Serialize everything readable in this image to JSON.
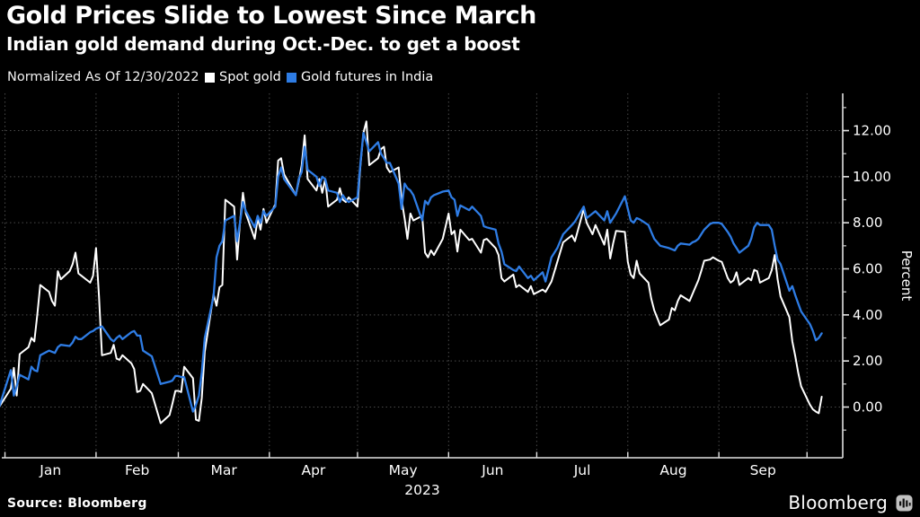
{
  "header": {
    "title": "Gold Prices Slide to Lowest Since March",
    "subtitle": "Indian gold demand during Oct.-Dec. to get a boost"
  },
  "legend": {
    "note": "Normalized As Of 12/30/2022",
    "spot_label": "Spot gold",
    "futures_label": "Gold futures in India",
    "spot_color": "#ffffff",
    "futures_color": "#2e7ce4"
  },
  "footer": {
    "source": "Source: Bloomberg",
    "brand": "Bloomberg",
    "brand_icon": "bar-chart-icon"
  },
  "x_axis": {
    "year": "2023",
    "months": [
      {
        "label": "Jan",
        "start": 2
      },
      {
        "label": "Feb",
        "start": 33
      },
      {
        "label": "Mar",
        "start": 61
      },
      {
        "label": "Apr",
        "start": 92
      },
      {
        "label": "May",
        "start": 122
      },
      {
        "label": "Jun",
        "start": 153
      },
      {
        "label": "Jul",
        "start": 183
      },
      {
        "label": "Aug",
        "start": 214
      },
      {
        "label": "Sep",
        "start": 245
      }
    ],
    "end_boundary": 275
  },
  "y_axis": {
    "label": "Percent",
    "majors": [
      0,
      2,
      4,
      6,
      8,
      10,
      12
    ],
    "major_labels": [
      "0.00",
      "2.00",
      "4.00",
      "6.00",
      "8.00",
      "10.00",
      "12.00"
    ],
    "minors": [
      -1,
      1,
      3,
      5,
      7,
      9,
      11,
      13
    ]
  },
  "chart_data": {
    "type": "line",
    "title": "Gold Prices Slide to Lowest Since March",
    "subtitle": "Indian gold demand during Oct.-Dec. to get a boost",
    "normalized_as_of": "12/30/2022",
    "x_unit": "days since 12/30/2022 (Jan 1 = 2, Feb 1 = 33, Mar 1 = 61, Apr 1 = 92, May 1 = 122, Jun 1 = 153, Jul 1 = 183, Aug 1 = 214, Sep 1 = 245, Oct 1 = 275)",
    "ylabel": "Percent",
    "ylim": [
      -2.2,
      13.6
    ],
    "grid": "dotted horizontal at each 2.00, dotted vertical at month boundaries",
    "legend_position": "top-left above plot",
    "days": [
      0,
      4,
      5,
      6,
      7,
      10,
      11,
      12,
      13,
      14,
      17,
      18,
      19,
      20,
      21,
      24,
      25,
      26,
      27,
      28,
      31,
      32,
      33,
      34,
      35,
      38,
      39,
      40,
      41,
      42,
      45,
      46,
      47,
      48,
      49,
      52,
      55,
      58,
      59,
      60,
      61,
      62,
      63,
      66,
      67,
      68,
      69,
      70,
      73,
      74,
      75,
      76,
      77,
      80,
      81,
      82,
      83,
      84,
      87,
      88,
      89,
      90,
      91,
      94,
      95,
      96,
      97,
      101,
      102,
      103,
      104,
      105,
      108,
      109,
      110,
      111,
      112,
      115,
      116,
      117,
      118,
      119,
      122,
      123,
      124,
      125,
      126,
      129,
      130,
      131,
      132,
      133,
      136,
      137,
      138,
      139,
      140,
      141,
      144,
      145,
      146,
      147,
      148,
      151,
      153,
      154,
      155,
      156,
      157,
      160,
      161,
      164,
      165,
      166,
      169,
      170,
      171,
      172,
      175,
      176,
      177,
      180,
      181,
      182,
      185,
      186,
      188,
      190,
      192,
      195,
      196,
      199,
      200,
      202,
      203,
      206,
      207,
      208,
      209,
      210,
      213,
      214,
      215,
      216,
      217,
      218,
      221,
      222,
      223,
      225,
      228,
      229,
      230,
      231,
      232,
      235,
      236,
      237,
      238,
      239,
      240,
      242,
      243,
      245,
      246,
      248,
      249,
      250,
      251,
      252,
      255,
      256,
      257,
      258,
      259,
      262,
      263,
      264,
      265,
      266,
      269,
      270,
      271,
      272,
      273,
      276,
      277,
      278,
      279,
      280
    ],
    "series": [
      {
        "name": "Spot gold",
        "color": "#ffffff",
        "values": [
          0,
          0.8,
          1.7,
          0.5,
          2.3,
          2.6,
          3.0,
          2.85,
          4.0,
          5.3,
          5.0,
          4.6,
          4.4,
          5.9,
          5.55,
          5.9,
          6.2,
          6.7,
          5.8,
          5.7,
          5.4,
          5.7,
          6.9,
          4.8,
          2.25,
          2.35,
          2.7,
          2.1,
          2.05,
          2.25,
          1.9,
          1.65,
          0.65,
          0.7,
          1.0,
          0.6,
          -0.7,
          -0.35,
          0.15,
          0.7,
          0.7,
          0.65,
          1.75,
          1.25,
          -0.55,
          -0.6,
          0.4,
          2.4,
          4.9,
          4.4,
          5.2,
          5.3,
          9.0,
          8.7,
          6.4,
          8.0,
          9.3,
          8.4,
          7.3,
          8.2,
          7.7,
          8.6,
          8.0,
          8.8,
          10.7,
          10.8,
          10.1,
          9.2,
          9.8,
          10.5,
          11.8,
          9.9,
          9.4,
          9.9,
          9.3,
          9.9,
          8.7,
          9.0,
          9.5,
          9.0,
          8.9,
          9.1,
          8.7,
          10.5,
          11.9,
          12.4,
          10.5,
          10.8,
          11.2,
          11.3,
          10.4,
          10.2,
          10.4,
          9.0,
          8.2,
          7.3,
          8.4,
          8.1,
          8.3,
          6.7,
          6.5,
          6.8,
          6.6,
          7.3,
          8.4,
          7.5,
          7.65,
          6.75,
          7.7,
          7.25,
          7.3,
          6.7,
          7.25,
          7.3,
          6.9,
          6.6,
          5.6,
          5.45,
          5.75,
          5.2,
          5.3,
          5.0,
          5.25,
          4.9,
          5.1,
          5.0,
          5.45,
          6.3,
          7.15,
          7.45,
          7.2,
          8.6,
          8.0,
          7.5,
          7.9,
          7.05,
          7.7,
          6.45,
          7.1,
          7.65,
          7.6,
          6.3,
          5.75,
          5.6,
          6.35,
          5.8,
          5.4,
          4.7,
          4.2,
          3.55,
          3.8,
          4.3,
          4.2,
          4.6,
          4.85,
          4.6,
          4.9,
          5.2,
          5.5,
          5.9,
          6.35,
          6.4,
          6.5,
          6.35,
          6.3,
          5.6,
          5.4,
          5.5,
          5.85,
          5.3,
          5.6,
          5.5,
          5.95,
          5.9,
          5.4,
          5.6,
          5.95,
          6.6,
          5.55,
          4.8,
          3.9,
          2.85,
          2.2,
          1.5,
          0.9,
          0.1,
          -0.1,
          -0.2,
          -0.27,
          0.45
        ]
      },
      {
        "name": "Gold futures in India",
        "color": "#2e7ce4",
        "values": [
          0,
          1.6,
          0.5,
          0.9,
          1.4,
          1.2,
          1.75,
          1.6,
          1.55,
          2.25,
          2.45,
          2.4,
          2.35,
          2.6,
          2.7,
          2.65,
          2.8,
          3.05,
          2.95,
          2.95,
          3.25,
          3.3,
          3.4,
          3.45,
          3.5,
          2.95,
          2.85,
          3.0,
          3.1,
          2.95,
          3.25,
          3.3,
          3.1,
          3.1,
          2.45,
          2.2,
          1.0,
          1.1,
          1.15,
          1.35,
          1.35,
          1.3,
          1.3,
          -0.2,
          0.1,
          0.5,
          1.5,
          3.0,
          4.8,
          6.5,
          7.0,
          7.2,
          8.1,
          8.3,
          7.2,
          8.0,
          8.9,
          8.5,
          7.8,
          8.3,
          8.0,
          8.5,
          8.3,
          8.7,
          10.0,
          10.4,
          9.9,
          9.2,
          9.9,
          10.2,
          11.3,
          10.3,
          10.0,
          9.6,
          10.0,
          9.9,
          9.4,
          9.3,
          8.9,
          9.2,
          9.0,
          8.9,
          9.1,
          10.6,
          11.9,
          11.5,
          11.1,
          11.5,
          11.0,
          10.8,
          10.6,
          10.6,
          9.7,
          8.6,
          9.7,
          9.5,
          9.4,
          9.2,
          8.1,
          8.95,
          8.8,
          9.1,
          9.2,
          9.35,
          9.4,
          9.1,
          9.0,
          8.3,
          8.75,
          8.55,
          8.7,
          8.3,
          7.85,
          7.8,
          7.7,
          7.1,
          6.75,
          6.2,
          5.95,
          5.9,
          6.1,
          5.6,
          5.7,
          5.5,
          5.85,
          5.45,
          6.5,
          6.9,
          7.5,
          7.9,
          8.05,
          8.7,
          8.2,
          8.4,
          8.5,
          8.1,
          8.5,
          8.0,
          8.2,
          8.4,
          9.15,
          8.6,
          8.1,
          8.0,
          8.2,
          8.15,
          7.9,
          7.6,
          7.3,
          7.0,
          6.9,
          6.85,
          6.8,
          7.0,
          7.1,
          7.05,
          7.15,
          7.2,
          7.3,
          7.5,
          7.7,
          7.95,
          8.0,
          8.0,
          7.95,
          7.6,
          7.4,
          7.1,
          6.9,
          6.7,
          7.0,
          7.3,
          7.8,
          8.0,
          7.9,
          7.9,
          7.7,
          7.0,
          6.4,
          6.2,
          5.05,
          5.25,
          4.85,
          4.5,
          4.15,
          3.6,
          3.3,
          2.9,
          3.0,
          3.2
        ]
      }
    ]
  }
}
